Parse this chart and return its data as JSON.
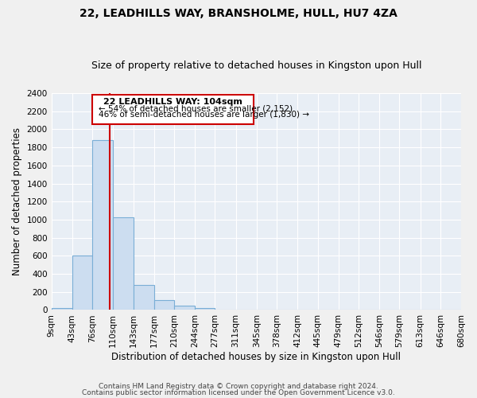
{
  "title": "22, LEADHILLS WAY, BRANSHOLME, HULL, HU7 4ZA",
  "subtitle": "Size of property relative to detached houses in Kingston upon Hull",
  "xlabel": "Distribution of detached houses by size in Kingston upon Hull",
  "ylabel": "Number of detached properties",
  "bar_color": "#ccddf0",
  "bar_edge_color": "#7aaed6",
  "bin_edges": [
    9,
    43,
    76,
    110,
    143,
    177,
    210,
    244,
    277,
    311,
    345,
    378,
    412,
    445,
    479,
    512,
    546,
    579,
    613,
    646,
    680
  ],
  "bar_heights": [
    20,
    600,
    1880,
    1030,
    280,
    110,
    45,
    20,
    5,
    2,
    1,
    1,
    0,
    0,
    0,
    0,
    0,
    0,
    0,
    0
  ],
  "property_line_x": 104,
  "property_line_color": "#cc0000",
  "ylim": [
    0,
    2400
  ],
  "yticks": [
    0,
    200,
    400,
    600,
    800,
    1000,
    1200,
    1400,
    1600,
    1800,
    2000,
    2200,
    2400
  ],
  "annotation_title": "22 LEADHILLS WAY: 104sqm",
  "annotation_line1": "← 54% of detached houses are smaller (2,152)",
  "annotation_line2": "46% of semi-detached houses are larger (1,830) →",
  "annotation_box_color": "#cc0000",
  "background_color": "#f0f0f0",
  "grid_color": "#ffffff",
  "plot_bg_color": "#e8eef5",
  "footer_line1": "Contains HM Land Registry data © Crown copyright and database right 2024.",
  "footer_line2": "Contains public sector information licensed under the Open Government Licence v3.0.",
  "title_fontsize": 10,
  "subtitle_fontsize": 9,
  "xlabel_fontsize": 8.5,
  "ylabel_fontsize": 8.5,
  "tick_fontsize": 7.5,
  "annotation_title_fontsize": 8,
  "annotation_text_fontsize": 7.5,
  "footer_fontsize": 6.5
}
